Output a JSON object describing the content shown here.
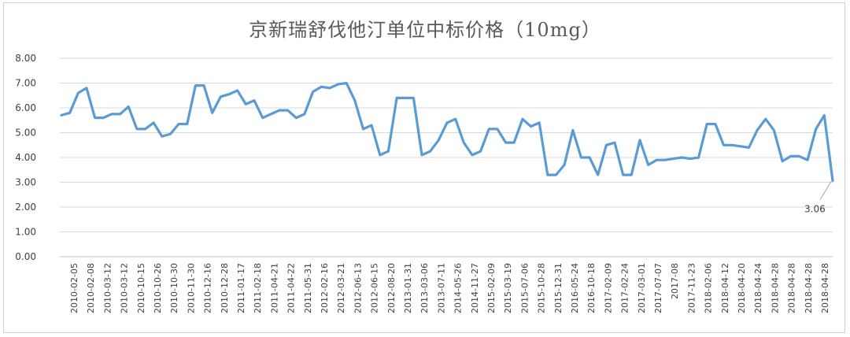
{
  "chart_data": {
    "type": "line",
    "title": "京新瑞舒伐他汀单位中标价格（10mg）",
    "xlabel": "",
    "ylabel": "",
    "ylim": [
      0,
      8
    ],
    "yticks": [
      "0.00",
      "1.00",
      "2.00",
      "3.00",
      "4.00",
      "5.00",
      "6.00",
      "7.00",
      "8.00"
    ],
    "grid": "horizontal",
    "legend": "none",
    "line_color": "#5b9bd5",
    "x_tick_labels": [
      "2010-02-05",
      "2010-02-08",
      "2010-03-12",
      "2010-03-12",
      "2010-10-15",
      "2010-10-26",
      "2010-10-30",
      "2010-11-30",
      "2010-12-16",
      "2010-12-28",
      "2011-01-17",
      "2011-02-18",
      "2011-04-21",
      "2011-04-22",
      "2011-05-31",
      "2012-02-16",
      "2012-03-21",
      "2012-06-13",
      "2012-06-15",
      "2012-08-20",
      "2013-01-31",
      "2013-03-06",
      "2013-07-11",
      "2014-05-26",
      "2014-11-27",
      "2015-02-09",
      "2015-03-19",
      "2015-07-06",
      "2015-10-28",
      "2015-12-31",
      "2016-05-24",
      "2016-10-18",
      "2017-02-09",
      "2017-02-24",
      "2017-03-01",
      "2017-07-07",
      "2017-08",
      "2017-11-23",
      "2018-02-06",
      "2018-04-12",
      "2018-04-20",
      "2018-04-24",
      "2018-04-28",
      "2018-04-28",
      "2018-04-28",
      "2018-04-28"
    ],
    "series": [
      {
        "values": [
          5.7,
          5.8,
          6.6,
          6.8,
          5.6,
          5.6,
          5.75,
          5.75,
          6.05,
          5.15,
          5.15,
          5.4,
          4.85,
          4.95,
          5.35,
          5.35,
          6.9,
          6.9,
          5.8,
          6.45,
          6.55,
          6.7,
          6.15,
          6.3,
          5.6,
          5.75,
          5.9,
          5.9,
          5.6,
          5.75,
          6.65,
          6.85,
          6.8,
          6.95,
          7.0,
          6.3,
          5.15,
          5.3,
          4.1,
          4.25,
          6.4,
          6.4,
          6.4,
          4.1,
          4.25,
          4.7,
          5.4,
          5.55,
          4.6,
          4.1,
          4.25,
          5.15,
          5.15,
          4.6,
          4.6,
          5.55,
          5.25,
          5.4,
          3.3,
          3.3,
          3.7,
          5.1,
          4.0,
          4.0,
          3.3,
          4.5,
          4.6,
          3.3,
          3.3,
          4.7,
          3.7,
          3.9,
          3.9,
          3.95,
          4.0,
          3.95,
          4.0,
          5.35,
          5.35,
          4.5,
          4.5,
          4.45,
          4.4,
          5.1,
          5.55,
          5.1,
          3.85,
          4.05,
          4.05,
          3.9,
          5.15,
          5.7,
          3.06
        ]
      }
    ],
    "annotations": [
      {
        "label": "3.06"
      }
    ]
  }
}
